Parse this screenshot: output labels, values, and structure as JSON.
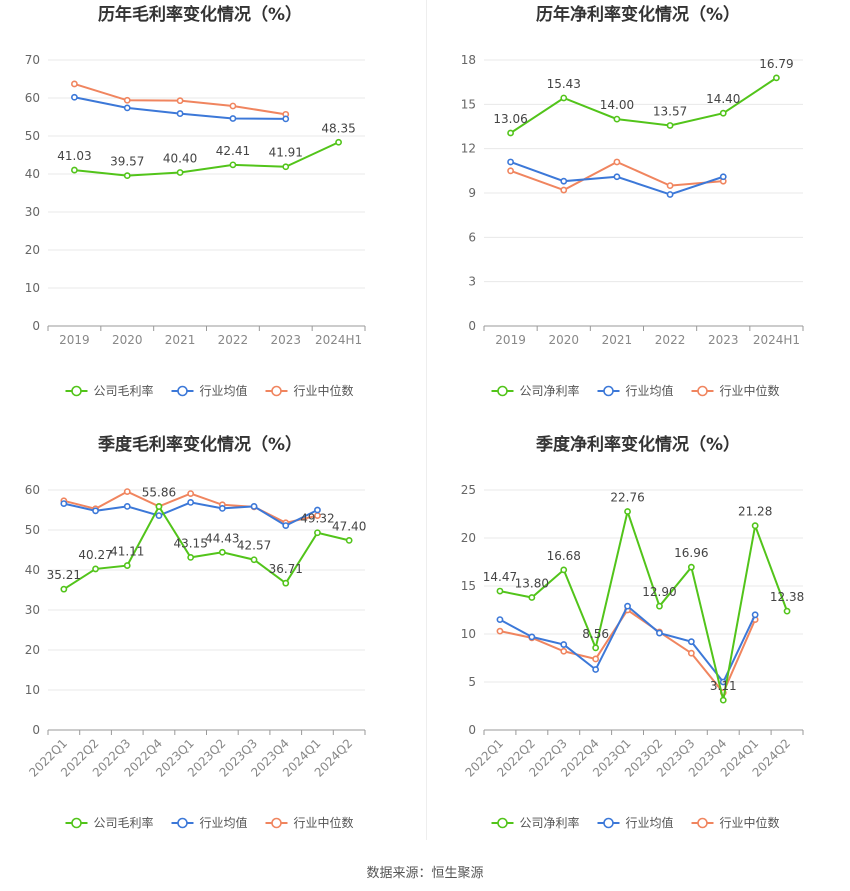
{
  "colors": {
    "company": "#52c41a",
    "avg": "#3c78d8",
    "median": "#f0855f",
    "grid": "#e8e8e8",
    "axis": "#555555",
    "text": "#333333"
  },
  "source_label": "数据来源：",
  "source_name": "恒生聚源",
  "chart_data": [
    {
      "type": "line",
      "title": "历年毛利率变化情况（%）",
      "categories": [
        "2019",
        "2020",
        "2021",
        "2022",
        "2023",
        "2024H1"
      ],
      "ylim": [
        0,
        70
      ],
      "yticks": [
        0,
        10,
        20,
        30,
        40,
        50,
        60,
        70
      ],
      "label_series": 0,
      "tick_rotate": false,
      "series": [
        {
          "name": "公司毛利率",
          "color": "#52c41a",
          "values": [
            41.03,
            39.57,
            40.4,
            42.41,
            41.91,
            48.35
          ],
          "labels": [
            "41.03",
            "39.57",
            "40.40",
            "42.41",
            "41.91",
            "48.35"
          ]
        },
        {
          "name": "行业均值",
          "color": "#3c78d8",
          "values": [
            60.2,
            57.4,
            55.9,
            54.6,
            54.5,
            null
          ]
        },
        {
          "name": "行业中位数",
          "color": "#f0855f",
          "values": [
            63.7,
            59.4,
            59.3,
            57.9,
            55.7,
            null
          ]
        }
      ]
    },
    {
      "type": "line",
      "title": "历年净利率变化情况（%）",
      "categories": [
        "2019",
        "2020",
        "2021",
        "2022",
        "2023",
        "2024H1"
      ],
      "ylim": [
        0,
        18
      ],
      "yticks": [
        0,
        3,
        6,
        9,
        12,
        15,
        18
      ],
      "label_series": 0,
      "tick_rotate": false,
      "series": [
        {
          "name": "公司净利率",
          "color": "#52c41a",
          "values": [
            13.06,
            15.43,
            14.0,
            13.57,
            14.4,
            16.79
          ],
          "labels": [
            "13.06",
            "15.43",
            "14.00",
            "13.57",
            "14.40",
            "16.79"
          ]
        },
        {
          "name": "行业均值",
          "color": "#3c78d8",
          "values": [
            11.1,
            9.8,
            10.1,
            8.9,
            10.1,
            null
          ]
        },
        {
          "name": "行业中位数",
          "color": "#f0855f",
          "values": [
            10.5,
            9.2,
            11.1,
            9.5,
            9.8,
            null
          ]
        }
      ]
    },
    {
      "type": "line",
      "title": "季度毛利率变化情况（%）",
      "categories": [
        "2022Q1",
        "2022Q2",
        "2022Q3",
        "2022Q4",
        "2023Q1",
        "2023Q2",
        "2023Q3",
        "2023Q4",
        "2024Q1",
        "2024Q2"
      ],
      "ylim": [
        0,
        60
      ],
      "yticks": [
        0,
        10,
        20,
        30,
        40,
        50,
        60
      ],
      "label_series": 0,
      "tick_rotate": true,
      "series": [
        {
          "name": "公司毛利率",
          "color": "#52c41a",
          "values": [
            35.21,
            40.27,
            41.11,
            55.86,
            43.15,
            44.43,
            42.57,
            36.71,
            49.32,
            47.4
          ],
          "labels": [
            "35.21",
            "40.27",
            "41.11",
            "55.86",
            "43.15",
            "44.43",
            "42.57",
            "36.71",
            "49.32",
            "47.40"
          ]
        },
        {
          "name": "行业均值",
          "color": "#3c78d8",
          "values": [
            56.6,
            54.8,
            55.9,
            53.6,
            56.9,
            55.4,
            55.9,
            51.1,
            55.0,
            null
          ]
        },
        {
          "name": "行业中位数",
          "color": "#f0855f",
          "values": [
            57.3,
            55.3,
            59.6,
            55.9,
            59.1,
            56.3,
            55.8,
            51.8,
            53.6,
            null
          ]
        }
      ]
    },
    {
      "type": "line",
      "title": "季度净利率变化情况（%）",
      "categories": [
        "2022Q1",
        "2022Q2",
        "2022Q3",
        "2022Q4",
        "2023Q1",
        "2023Q2",
        "2023Q3",
        "2023Q4",
        "2024Q1",
        "2024Q2"
      ],
      "ylim": [
        0,
        25
      ],
      "yticks": [
        0,
        5,
        10,
        15,
        20,
        25
      ],
      "label_series": 0,
      "tick_rotate": true,
      "series": [
        {
          "name": "公司净利率",
          "color": "#52c41a",
          "values": [
            14.47,
            13.8,
            16.68,
            8.56,
            22.76,
            12.9,
            16.96,
            3.11,
            21.28,
            12.38
          ],
          "labels": [
            "14.47",
            "13.80",
            "16.68",
            "8.56",
            "22.76",
            "12.90",
            "16.96",
            "3.11",
            "21.28",
            "12.38"
          ]
        },
        {
          "name": "行业均值",
          "color": "#3c78d8",
          "values": [
            11.5,
            9.7,
            8.9,
            6.3,
            12.9,
            10.1,
            9.2,
            5.0,
            12.0,
            null
          ]
        },
        {
          "name": "行业中位数",
          "color": "#f0855f",
          "values": [
            10.3,
            9.6,
            8.2,
            7.4,
            12.5,
            10.2,
            8.0,
            3.9,
            11.5,
            null
          ]
        }
      ]
    }
  ]
}
